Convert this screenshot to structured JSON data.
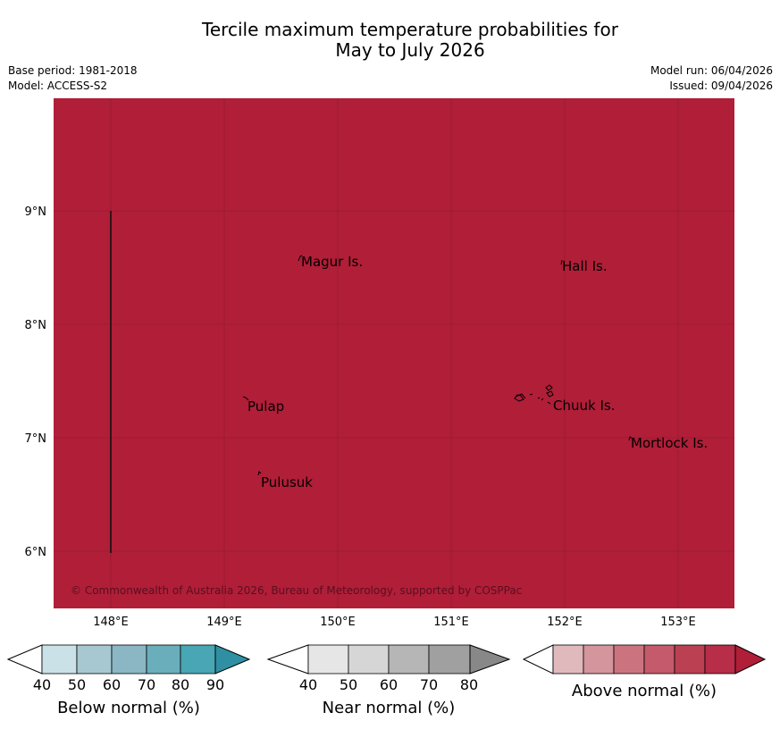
{
  "title": {
    "line1": "Tercile maximum temperature probabilities for",
    "line2": "May to July 2026"
  },
  "meta": {
    "base_period": "Base period: 1981-2018",
    "model": "Model: ACCESS-S2",
    "model_run": "Model run: 06/04/2026",
    "issued": "Issued: 09/04/2026"
  },
  "map": {
    "fill_color": "#b01e38",
    "lon_ticks": [
      "148°E",
      "149°E",
      "150°E",
      "151°E",
      "152°E",
      "153°E"
    ],
    "lat_ticks": [
      "9°N",
      "8°N",
      "7°N",
      "6°N"
    ],
    "places": [
      "Magur Is.",
      "Hall Is.",
      "Pulap",
      "Chuuk Is.",
      "Mortlock Is.",
      "Pulusuk"
    ],
    "copyright": "© Commonwealth of Australia 2026, Bureau of Meteorology, supported by COSPPac"
  },
  "colorbars": {
    "below": {
      "label": "Below normal (%)",
      "ticks": [
        "40",
        "50",
        "60",
        "70",
        "80",
        "90"
      ],
      "colors": [
        "#ffffff",
        "#cae1e8",
        "#a7c8d0",
        "#8ab7c3",
        "#6aaebb",
        "#49a6b4",
        "#2f8fa3"
      ]
    },
    "near": {
      "label": "Near normal (%)",
      "ticks": [
        "40",
        "50",
        "60",
        "70",
        "80"
      ],
      "colors": [
        "#ffffff",
        "#e6e6e6",
        "#d6d6d6",
        "#b6b6b6",
        "#a0a0a0",
        "#888888"
      ]
    },
    "above": {
      "label": "Above normal (%)",
      "colors": [
        "#ffffff",
        "#e0b9bd",
        "#d4959c",
        "#cb7480",
        "#c45a6b",
        "#bb4052",
        "#b82d47",
        "#b01e38"
      ]
    }
  }
}
